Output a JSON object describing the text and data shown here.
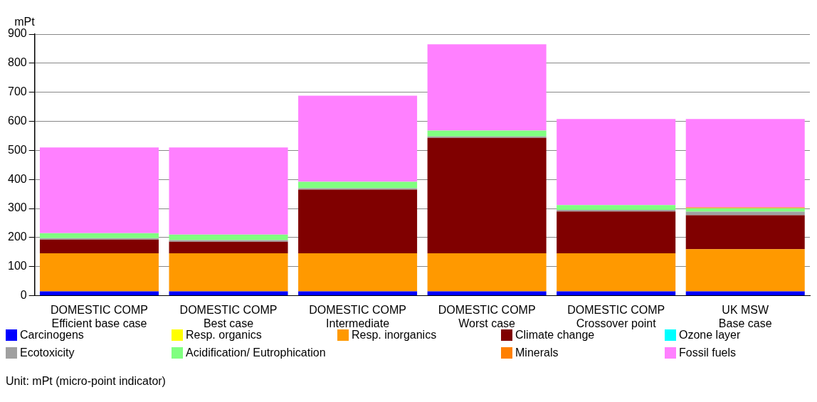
{
  "chart_data": {
    "type": "bar",
    "stacked": true,
    "ylabel": "mPt",
    "categories": [
      "DOMESTIC COMP\nEfficient base case",
      "DOMESTIC COMP\nBest case",
      "DOMESTIC COMP\nIntermediate",
      "DOMESTIC COMP\nWorst case",
      "DOMESTIC COMP\nCrossover point",
      "UK MSW\nBase case"
    ],
    "series": [
      {
        "name": "Carcinogens",
        "color": "#0000ff",
        "values": [
          15,
          15,
          15,
          15,
          15,
          15
        ]
      },
      {
        "name": "Resp. organics",
        "color": "#ffff00",
        "values": [
          0,
          0,
          0,
          0,
          0,
          0
        ]
      },
      {
        "name": "Resp. inorganics",
        "color": "#ff9900",
        "values": [
          131,
          131,
          131,
          131,
          131,
          145
        ]
      },
      {
        "name": "Climate change",
        "color": "#800000",
        "values": [
          47,
          40,
          219,
          397,
          144,
          117
        ]
      },
      {
        "name": "Ozone layer",
        "color": "#00ffff",
        "values": [
          0,
          0,
          0,
          0,
          0,
          0
        ]
      },
      {
        "name": "Ecotoxicity",
        "color": "#a0a0a0",
        "values": [
          5,
          5,
          5,
          5,
          5,
          12
        ]
      },
      {
        "name": "Acidification/ Eutrophication",
        "color": "#80ff80",
        "values": [
          17,
          19,
          22,
          20,
          17,
          12
        ]
      },
      {
        "name": "Minerals",
        "color": "#ff8000",
        "values": [
          0,
          0,
          0,
          0,
          0,
          3
        ]
      },
      {
        "name": "Fossil fuels",
        "color": "#ff80ff",
        "values": [
          295,
          300,
          296,
          297,
          296,
          304
        ]
      }
    ],
    "ylim": [
      0,
      900
    ],
    "yticks": [
      0,
      100,
      200,
      300,
      400,
      500,
      600,
      700,
      800,
      900
    ],
    "grid": "y",
    "legend": "bottom",
    "annotations": [
      "Unit: mPt (micro-point indicator)"
    ]
  }
}
